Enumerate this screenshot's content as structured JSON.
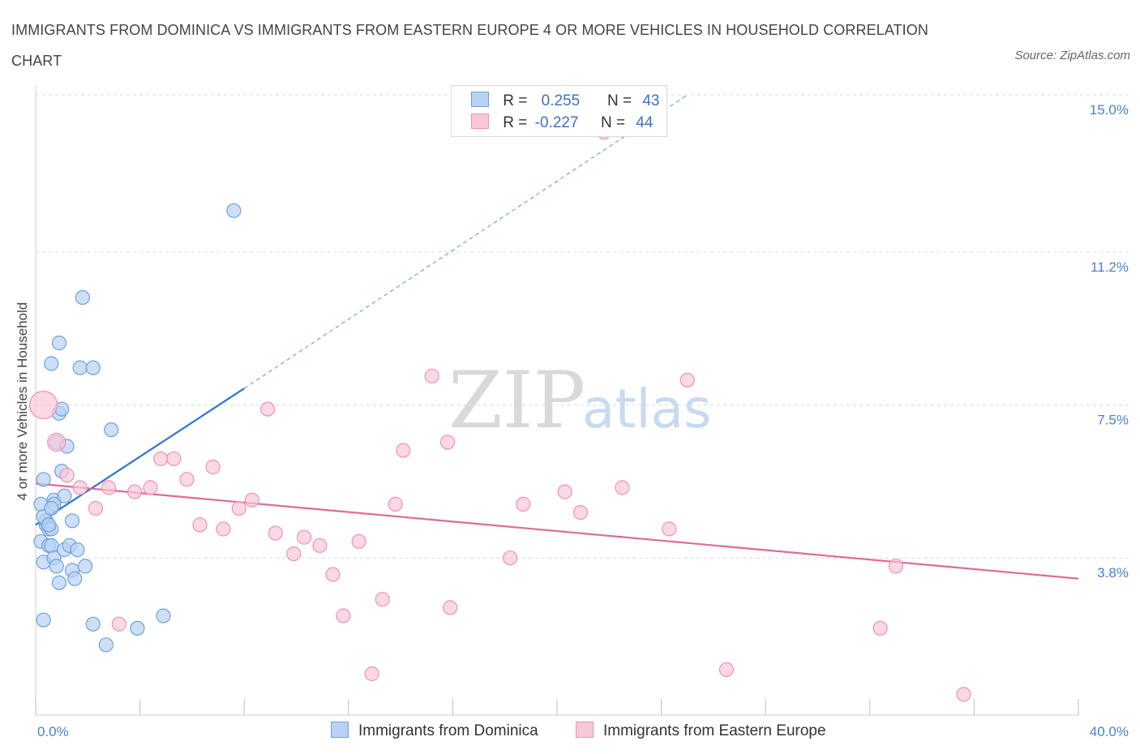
{
  "title": "IMMIGRANTS FROM DOMINICA VS IMMIGRANTS FROM EASTERN EUROPE 4 OR MORE VEHICLES IN HOUSEHOLD CORRELATION CHART",
  "source": "Source: ZipAtlas.com",
  "watermark": {
    "zip": "ZIP",
    "atlas": "atlas"
  },
  "legend": {
    "r_label": "R =",
    "n_label": "N =",
    "rows": [
      {
        "r": "0.255",
        "n": "43"
      },
      {
        "r": "-0.227",
        "n": "44"
      }
    ]
  },
  "bottom_legend": [
    "Immigrants from Dominica",
    "Immigrants from Eastern Europe"
  ],
  "colors": {
    "blue_fill": "#b8d2f4",
    "blue_stroke": "#6f9fdc",
    "blue_line": "#2f74d0",
    "pink_fill": "#f9c8d8",
    "pink_stroke": "#ea93b0",
    "pink_line": "#e06a96",
    "grid": "#d8d8d8",
    "tick_text": "#4a80c8"
  },
  "chart_data": {
    "type": "scatter",
    "title": "IMMIGRANTS FROM DOMINICA VS IMMIGRANTS FROM EASTERN EUROPE 4 OR MORE VEHICLES IN HOUSEHOLD CORRELATION CHART",
    "xlabel": "",
    "ylabel": "4 or more Vehicles in Household",
    "xlim": [
      0,
      40
    ],
    "ylim": [
      0,
      15
    ],
    "x_tick_labels": [
      "0.0%",
      "40.0%"
    ],
    "y_ticks": [
      {
        "value": 3.8,
        "label": "3.8%"
      },
      {
        "value": 7.5,
        "label": "7.5%"
      },
      {
        "value": 11.2,
        "label": "11.2%"
      },
      {
        "value": 15.0,
        "label": "15.0%"
      }
    ],
    "grid": "horizontal dashed",
    "legend_placement": "top-center",
    "series": [
      {
        "name": "Immigrants from Dominica",
        "color": "blue",
        "points": [
          [
            0.2,
            5.1
          ],
          [
            0.2,
            4.2
          ],
          [
            0.3,
            3.7
          ],
          [
            0.3,
            2.3
          ],
          [
            0.3,
            5.7
          ],
          [
            0.4,
            4.6
          ],
          [
            0.4,
            4.7
          ],
          [
            0.5,
            4.5
          ],
          [
            0.5,
            4.1
          ],
          [
            0.6,
            4.5
          ],
          [
            0.6,
            4.1
          ],
          [
            0.6,
            8.5
          ],
          [
            0.7,
            5.2
          ],
          [
            0.7,
            3.8
          ],
          [
            0.7,
            5.1
          ],
          [
            0.8,
            6.6
          ],
          [
            0.8,
            3.6
          ],
          [
            0.9,
            3.2
          ],
          [
            0.9,
            9.0
          ],
          [
            0.9,
            7.3
          ],
          [
            1.0,
            7.4
          ],
          [
            1.0,
            5.9
          ],
          [
            1.1,
            4.0
          ],
          [
            1.2,
            6.5
          ],
          [
            1.3,
            4.1
          ],
          [
            1.4,
            4.7
          ],
          [
            1.4,
            3.5
          ],
          [
            1.5,
            3.3
          ],
          [
            1.6,
            4.0
          ],
          [
            1.7,
            8.4
          ],
          [
            1.8,
            10.1
          ],
          [
            1.9,
            3.6
          ],
          [
            2.2,
            8.4
          ],
          [
            2.2,
            2.2
          ],
          [
            2.7,
            1.7
          ],
          [
            2.9,
            6.9
          ],
          [
            3.9,
            2.1
          ],
          [
            4.9,
            2.4
          ],
          [
            7.6,
            12.2
          ],
          [
            0.3,
            4.8
          ],
          [
            0.5,
            4.6
          ],
          [
            1.1,
            5.3
          ],
          [
            0.6,
            5.0
          ]
        ],
        "trend": {
          "x": [
            0.0,
            8.0
          ],
          "y": [
            4.6,
            7.9
          ],
          "extended_to": [
            25.0,
            15.0
          ]
        }
      },
      {
        "name": "Immigrants from Eastern Europe",
        "color": "pink",
        "points": [
          [
            0.3,
            7.5
          ],
          [
            0.8,
            6.6
          ],
          [
            1.2,
            5.8
          ],
          [
            1.7,
            5.5
          ],
          [
            2.3,
            5.0
          ],
          [
            2.8,
            5.5
          ],
          [
            3.2,
            2.2
          ],
          [
            3.8,
            5.4
          ],
          [
            4.4,
            5.5
          ],
          [
            4.8,
            6.2
          ],
          [
            5.3,
            6.2
          ],
          [
            5.8,
            5.7
          ],
          [
            6.3,
            4.6
          ],
          [
            6.8,
            6.0
          ],
          [
            7.2,
            4.5
          ],
          [
            7.8,
            5.0
          ],
          [
            8.3,
            5.2
          ],
          [
            8.9,
            7.4
          ],
          [
            9.2,
            4.4
          ],
          [
            9.9,
            3.9
          ],
          [
            10.3,
            4.3
          ],
          [
            10.9,
            4.1
          ],
          [
            11.4,
            3.4
          ],
          [
            11.8,
            2.4
          ],
          [
            12.4,
            4.2
          ],
          [
            12.9,
            1.0
          ],
          [
            13.3,
            2.8
          ],
          [
            13.8,
            5.1
          ],
          [
            14.1,
            6.4
          ],
          [
            15.2,
            8.2
          ],
          [
            15.8,
            6.6
          ],
          [
            15.9,
            2.6
          ],
          [
            18.2,
            3.8
          ],
          [
            18.7,
            5.1
          ],
          [
            20.3,
            5.4
          ],
          [
            20.9,
            4.9
          ],
          [
            21.8,
            14.1
          ],
          [
            22.5,
            5.5
          ],
          [
            24.3,
            4.5
          ],
          [
            25.0,
            8.1
          ],
          [
            26.5,
            1.1
          ],
          [
            32.4,
            2.1
          ],
          [
            33.0,
            3.6
          ],
          [
            35.6,
            0.5
          ]
        ],
        "trend": {
          "x": [
            0.0,
            40.0
          ],
          "y": [
            5.6,
            3.3
          ]
        }
      }
    ]
  }
}
